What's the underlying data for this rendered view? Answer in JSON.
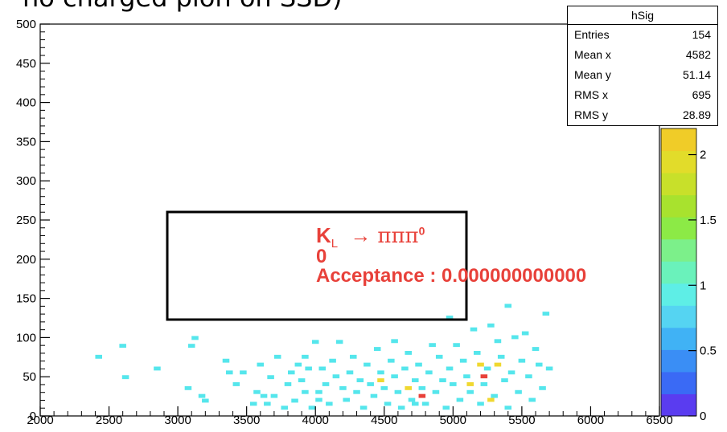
{
  "title_fragment": "no charged pion on SSD)",
  "stats": {
    "name": "hSig",
    "rows": [
      {
        "label": "Entries",
        "value": "154"
      },
      {
        "label": "Mean x",
        "value": "4582"
      },
      {
        "label": "Mean y",
        "value": "51.14"
      },
      {
        "label": "RMS x",
        "value": "695"
      },
      {
        "label": "RMS y",
        "value": "28.89"
      }
    ]
  },
  "annotation": {
    "kl": "K",
    "kl_sub": "L",
    "arrow": "→",
    "decay": "πππ",
    "decay_sup": "0",
    "zero": "0",
    "acceptance": "Acceptance : 0.000000000000"
  },
  "colors": {
    "axis": "#000000",
    "annotation": "#e8413a",
    "cell_low": "#55e6ec",
    "cell_mid": "#f0d830",
    "cell_high": "#e8413a"
  },
  "chart_data": {
    "type": "heatmap",
    "title": "",
    "xlabel": "",
    "ylabel": "",
    "xlim": [
      2000,
      6500
    ],
    "ylim": [
      0,
      500
    ],
    "x_ticks": [
      "2000",
      "2500",
      "3000",
      "3500",
      "4000",
      "4500",
      "5000",
      "5500",
      "6000",
      "6500"
    ],
    "y_ticks": [
      "0",
      "50",
      "100",
      "150",
      "200",
      "250",
      "300",
      "350",
      "400",
      "450",
      "500"
    ],
    "bin_width_x": 50,
    "bin_width_y": 5,
    "colorbar": {
      "range": [
        0,
        2.2
      ],
      "tick_labels": [
        "0",
        "0.5",
        "1",
        "1.5",
        "2"
      ]
    },
    "cells": [
      {
        "x": 2425,
        "y": 73,
        "v": 1
      },
      {
        "x": 2600,
        "y": 87,
        "v": 1
      },
      {
        "x": 2620,
        "y": 47,
        "v": 1
      },
      {
        "x": 2850,
        "y": 58,
        "v": 1
      },
      {
        "x": 3075,
        "y": 33,
        "v": 1
      },
      {
        "x": 3100,
        "y": 87,
        "v": 1
      },
      {
        "x": 3125,
        "y": 97,
        "v": 1
      },
      {
        "x": 3175,
        "y": 23,
        "v": 1
      },
      {
        "x": 3200,
        "y": 17,
        "v": 1
      },
      {
        "x": 3350,
        "y": 68,
        "v": 1
      },
      {
        "x": 3375,
        "y": 53,
        "v": 1
      },
      {
        "x": 3425,
        "y": 38,
        "v": 1
      },
      {
        "x": 3475,
        "y": 53,
        "v": 1
      },
      {
        "x": 3550,
        "y": 13,
        "v": 1
      },
      {
        "x": 3575,
        "y": 28,
        "v": 1
      },
      {
        "x": 3600,
        "y": 63,
        "v": 1
      },
      {
        "x": 3650,
        "y": 13,
        "v": 1
      },
      {
        "x": 3675,
        "y": 47,
        "v": 1
      },
      {
        "x": 3700,
        "y": 23,
        "v": 1
      },
      {
        "x": 3725,
        "y": 73,
        "v": 1
      },
      {
        "x": 3775,
        "y": 8,
        "v": 1
      },
      {
        "x": 3800,
        "y": 38,
        "v": 1
      },
      {
        "x": 3825,
        "y": 53,
        "v": 1
      },
      {
        "x": 3850,
        "y": 17,
        "v": 1
      },
      {
        "x": 3875,
        "y": 63,
        "v": 1
      },
      {
        "x": 3900,
        "y": 43,
        "v": 1
      },
      {
        "x": 3925,
        "y": 28,
        "v": 1
      },
      {
        "x": 3950,
        "y": 58,
        "v": 1
      },
      {
        "x": 3975,
        "y": 8,
        "v": 1
      },
      {
        "x": 4000,
        "y": 92,
        "v": 1
      },
      {
        "x": 4025,
        "y": 28,
        "v": 1
      },
      {
        "x": 4050,
        "y": 58,
        "v": 1
      },
      {
        "x": 4075,
        "y": 38,
        "v": 1
      },
      {
        "x": 4100,
        "y": 13,
        "v": 1
      },
      {
        "x": 4125,
        "y": 68,
        "v": 1
      },
      {
        "x": 4150,
        "y": 48,
        "v": 1
      },
      {
        "x": 4175,
        "y": 92,
        "v": 1
      },
      {
        "x": 4200,
        "y": 33,
        "v": 1
      },
      {
        "x": 4225,
        "y": 18,
        "v": 1
      },
      {
        "x": 4250,
        "y": 53,
        "v": 1
      },
      {
        "x": 4275,
        "y": 73,
        "v": 1
      },
      {
        "x": 4300,
        "y": 28,
        "v": 1
      },
      {
        "x": 4325,
        "y": 43,
        "v": 1
      },
      {
        "x": 4350,
        "y": 8,
        "v": 1
      },
      {
        "x": 4375,
        "y": 63,
        "v": 1
      },
      {
        "x": 4400,
        "y": 38,
        "v": 1
      },
      {
        "x": 4425,
        "y": 23,
        "v": 1
      },
      {
        "x": 4450,
        "y": 83,
        "v": 1
      },
      {
        "x": 4475,
        "y": 53,
        "v": 1
      },
      {
        "x": 4500,
        "y": 33,
        "v": 1
      },
      {
        "x": 4525,
        "y": 13,
        "v": 1
      },
      {
        "x": 4550,
        "y": 68,
        "v": 1
      },
      {
        "x": 4575,
        "y": 48,
        "v": 1
      },
      {
        "x": 4600,
        "y": 28,
        "v": 1
      },
      {
        "x": 4625,
        "y": 8,
        "v": 1
      },
      {
        "x": 4650,
        "y": 58,
        "v": 1
      },
      {
        "x": 4675,
        "y": 78,
        "v": 1
      },
      {
        "x": 4700,
        "y": 18,
        "v": 1
      },
      {
        "x": 4725,
        "y": 43,
        "v": 1
      },
      {
        "x": 4750,
        "y": 63,
        "v": 1
      },
      {
        "x": 4775,
        "y": 33,
        "v": 1
      },
      {
        "x": 4800,
        "y": 13,
        "v": 1
      },
      {
        "x": 4825,
        "y": 53,
        "v": 1
      },
      {
        "x": 4850,
        "y": 88,
        "v": 1
      },
      {
        "x": 4875,
        "y": 28,
        "v": 1
      },
      {
        "x": 4900,
        "y": 73,
        "v": 1
      },
      {
        "x": 4925,
        "y": 43,
        "v": 1
      },
      {
        "x": 4950,
        "y": 8,
        "v": 1
      },
      {
        "x": 4975,
        "y": 58,
        "v": 1
      },
      {
        "x": 5000,
        "y": 38,
        "v": 1
      },
      {
        "x": 5025,
        "y": 88,
        "v": 1
      },
      {
        "x": 5050,
        "y": 18,
        "v": 1
      },
      {
        "x": 5075,
        "y": 68,
        "v": 1
      },
      {
        "x": 5100,
        "y": 48,
        "v": 1
      },
      {
        "x": 5125,
        "y": 28,
        "v": 1
      },
      {
        "x": 5150,
        "y": 108,
        "v": 1
      },
      {
        "x": 5175,
        "y": 78,
        "v": 1
      },
      {
        "x": 5200,
        "y": 13,
        "v": 1
      },
      {
        "x": 5225,
        "y": 38,
        "v": 1
      },
      {
        "x": 5250,
        "y": 58,
        "v": 1
      },
      {
        "x": 5275,
        "y": 113,
        "v": 1
      },
      {
        "x": 5300,
        "y": 23,
        "v": 1
      },
      {
        "x": 5325,
        "y": 93,
        "v": 1
      },
      {
        "x": 5350,
        "y": 73,
        "v": 1
      },
      {
        "x": 5375,
        "y": 43,
        "v": 1
      },
      {
        "x": 5400,
        "y": 8,
        "v": 1
      },
      {
        "x": 5425,
        "y": 53,
        "v": 1
      },
      {
        "x": 5450,
        "y": 98,
        "v": 1
      },
      {
        "x": 5475,
        "y": 28,
        "v": 1
      },
      {
        "x": 5500,
        "y": 68,
        "v": 1
      },
      {
        "x": 5525,
        "y": 103,
        "v": 1
      },
      {
        "x": 5550,
        "y": 48,
        "v": 1
      },
      {
        "x": 5575,
        "y": 18,
        "v": 1
      },
      {
        "x": 5600,
        "y": 83,
        "v": 1
      },
      {
        "x": 5625,
        "y": 63,
        "v": 1
      },
      {
        "x": 5650,
        "y": 33,
        "v": 1
      },
      {
        "x": 5675,
        "y": 128,
        "v": 1
      },
      {
        "x": 5700,
        "y": 58,
        "v": 1
      },
      {
        "x": 5400,
        "y": 138,
        "v": 1
      },
      {
        "x": 4975,
        "y": 123,
        "v": 1
      },
      {
        "x": 3625,
        "y": 23,
        "v": 1
      },
      {
        "x": 3925,
        "y": 73,
        "v": 1
      },
      {
        "x": 4575,
        "y": 93,
        "v": 1
      },
      {
        "x": 4725,
        "y": 13,
        "v": 1
      },
      {
        "x": 4025,
        "y": 18,
        "v": 1
      },
      {
        "x": 4475,
        "y": 43,
        "v": 2
      },
      {
        "x": 4675,
        "y": 33,
        "v": 2
      },
      {
        "x": 5125,
        "y": 38,
        "v": 2
      },
      {
        "x": 5200,
        "y": 63,
        "v": 2
      },
      {
        "x": 5275,
        "y": 18,
        "v": 2
      },
      {
        "x": 5325,
        "y": 63,
        "v": 2
      },
      {
        "x": 4775,
        "y": 23,
        "v": 2.2
      },
      {
        "x": 5225,
        "y": 48,
        "v": 2.2
      }
    ]
  }
}
